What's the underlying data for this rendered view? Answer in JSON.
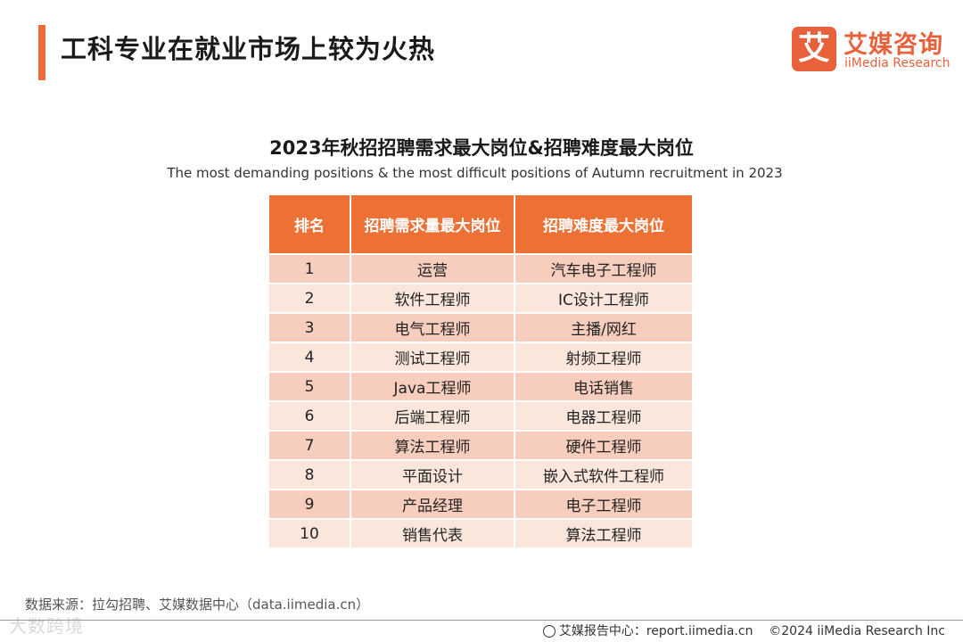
{
  "header": {
    "title": "工科专业在就业市场上较为火热",
    "accent_color": "#ee6a36"
  },
  "logo": {
    "mark": "艾",
    "name_cn": "艾媒咨询",
    "name_en": "iiMedia Research",
    "color": "#e8613a"
  },
  "table": {
    "title": "2023年秋招招聘需求最大岗位&招聘难度最大岗位",
    "subtitle": "The most demanding positions & the most difficult positions of Autumn recruitment in 2023",
    "headers": [
      "排名",
      "招聘需求量最大岗位",
      "招聘难度最大岗位"
    ],
    "rows": [
      [
        "1",
        "运营",
        "汽车电子工程师"
      ],
      [
        "2",
        "软件工程师",
        "IC设计工程师"
      ],
      [
        "3",
        "电气工程师",
        "主播/网红"
      ],
      [
        "4",
        "测试工程师",
        "射频工程师"
      ],
      [
        "5",
        "Java工程师",
        "电话销售"
      ],
      [
        "6",
        "后端工程师",
        "电器工程师"
      ],
      [
        "7",
        "算法工程师",
        "硬件工程师"
      ],
      [
        "8",
        "平面设计",
        "嵌入式软件工程师"
      ],
      [
        "9",
        "产品经理",
        "电子工程师"
      ],
      [
        "10",
        "销售代表",
        "算法工程师"
      ]
    ],
    "header_color": "#ed7135",
    "row_color_odd": "#f7cdbd",
    "row_color_even": "#fbe6dc"
  },
  "footer": {
    "source": "数据来源：拉勾招聘、艾媒数据中心（data.iimedia.cn）",
    "report_center": "艾媒报告中心：report.iimedia.cn",
    "copyright": "©2024  iiMedia Research  Inc",
    "watermark": "大数跨境",
    "globe_icon": "globe-icon"
  }
}
